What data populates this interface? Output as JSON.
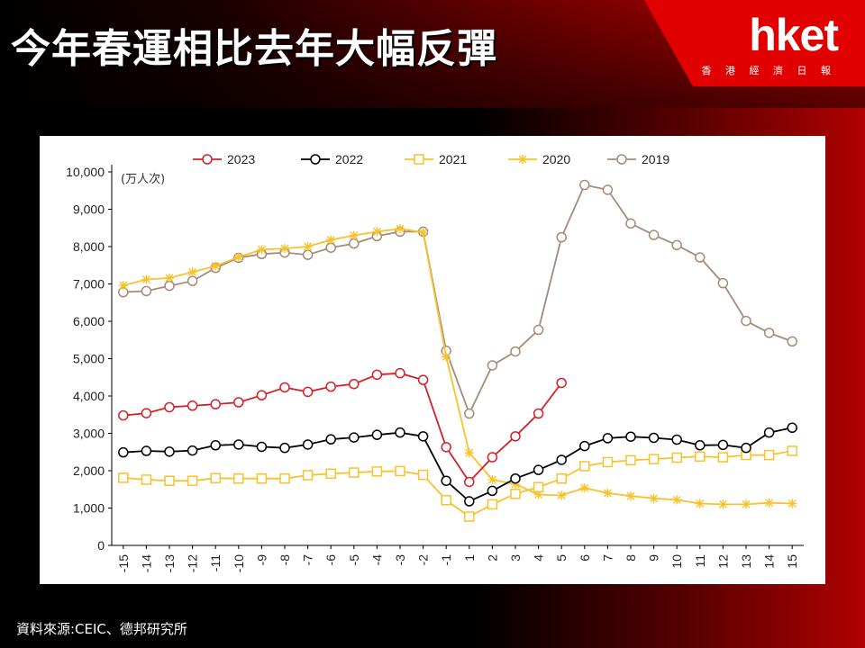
{
  "slide": {
    "title": "今年春運相比去年大幅反彈",
    "logo": "hket",
    "logo_sub": "香 港 經 濟 日 報",
    "source": "資料來源:CEIC、德邦研究所"
  },
  "colors": {
    "2023": "#d42027",
    "2022": "#000000",
    "2021": "#f7c22b",
    "2020": "#f7c22b",
    "2019": "#a48c78"
  },
  "chart_data": {
    "type": "line",
    "unit_label": "(万人次)",
    "x": [
      "-15",
      "-14",
      "-13",
      "-12",
      "-11",
      "-10",
      "-9",
      "-8",
      "-7",
      "-6",
      "-5",
      "-4",
      "-3",
      "-2",
      "-1",
      "1",
      "2",
      "3",
      "4",
      "5",
      "6",
      "7",
      "8",
      "9",
      "10",
      "11",
      "12",
      "13",
      "14",
      "15"
    ],
    "ylim": [
      0,
      10000
    ],
    "y_ticks": [
      "0",
      "1,000",
      "2,000",
      "3,000",
      "4,000",
      "5,000",
      "6,000",
      "7,000",
      "8,000",
      "9,000",
      "10,000"
    ],
    "legend_position": "top",
    "series": [
      {
        "name": "2023",
        "marker": "circle",
        "values": [
          3480,
          3540,
          3700,
          3740,
          3780,
          3830,
          4020,
          4230,
          4110,
          4250,
          4320,
          4570,
          4610,
          4430,
          2630,
          1700,
          2360,
          2920,
          3530,
          4350,
          null,
          null,
          null,
          null,
          null,
          null,
          null,
          null,
          null,
          null
        ]
      },
      {
        "name": "2022",
        "marker": "circle",
        "values": [
          2490,
          2530,
          2510,
          2540,
          2680,
          2700,
          2640,
          2610,
          2700,
          2840,
          2890,
          2960,
          3020,
          2920,
          1730,
          1180,
          1460,
          1790,
          2020,
          2290,
          2660,
          2870,
          2910,
          2880,
          2830,
          2680,
          2690,
          2610,
          3020,
          3150
        ]
      },
      {
        "name": "2021",
        "marker": "square",
        "values": [
          1810,
          1760,
          1730,
          1730,
          1800,
          1790,
          1790,
          1790,
          1880,
          1920,
          1950,
          1980,
          1990,
          1890,
          1210,
          770,
          1100,
          1380,
          1560,
          1790,
          2120,
          2230,
          2280,
          2310,
          2350,
          2380,
          2360,
          2420,
          2420,
          2530
        ]
      },
      {
        "name": "2020",
        "marker": "star",
        "values": [
          6960,
          7120,
          7160,
          7320,
          7480,
          7720,
          7920,
          7950,
          8000,
          8180,
          8300,
          8400,
          8480,
          8380,
          5050,
          2480,
          1760,
          1640,
          1360,
          1340,
          1540,
          1400,
          1320,
          1260,
          1220,
          1120,
          1100,
          1100,
          1140,
          1120
        ]
      },
      {
        "name": "2019",
        "marker": "circle",
        "values": [
          6780,
          6810,
          6950,
          7080,
          7430,
          7700,
          7800,
          7840,
          7780,
          7970,
          8080,
          8280,
          8400,
          8400,
          5210,
          3530,
          4820,
          5190,
          5770,
          8250,
          9650,
          9520,
          8620,
          8310,
          8040,
          7710,
          7020,
          6010,
          5690,
          5460
        ]
      }
    ]
  }
}
